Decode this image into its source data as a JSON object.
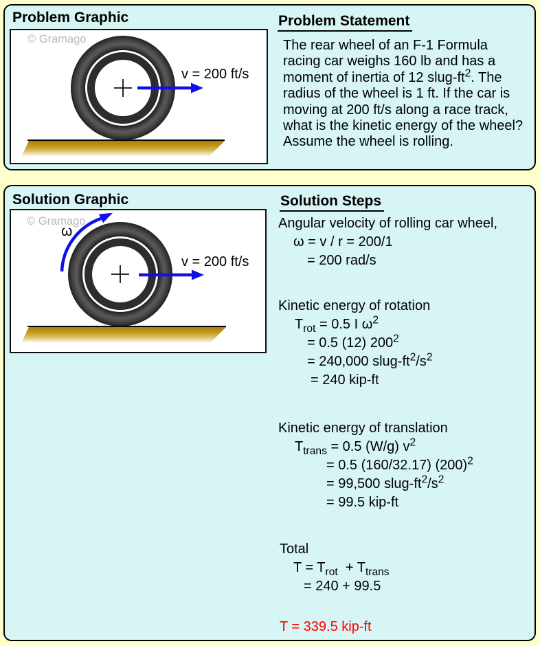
{
  "colors": {
    "page_bg": "#FFFFCC",
    "panel_bg": "#D7F5F5",
    "panel_border": "#000000",
    "arrow_blue": "#0F10E8",
    "result_red": "#FF0000",
    "ground_gold": "#B8860B",
    "watermark_gray": "#B9B9B9"
  },
  "problem": {
    "graphic_title": "Problem Graphic",
    "watermark": "© Gramago",
    "velocity_label": "v = 200 ft/s",
    "statement_title": "Problem Statement",
    "statement_lines": [
      "The rear wheel of an F-1 Formula",
      "racing car weighs 160 lb and has a",
      "moment of inertia of 12 slug-ft<sup>2</sup>. The",
      "radius of the wheel is 1 ft. If the car is",
      "moving at 200 ft/s along a race track,",
      "what is the kinetic energy of the wheel?",
      "Assume the wheel is rolling."
    ]
  },
  "solution": {
    "graphic_title": "Solution Graphic",
    "watermark": "© Gramago",
    "velocity_label": "v = 200 ft/s",
    "omega_label": "ω",
    "steps_title": "Solution Steps",
    "steps": [
      {
        "html": "Angular velocity of rolling car wheel,",
        "indent": 0
      },
      {
        "html": "ω = v / r = 200/1",
        "indent": 22
      },
      {
        "html": "= 200 rad/s",
        "indent": 42
      },
      {
        "html": "Kinetic energy of rotation",
        "indent": 0,
        "gap": 39
      },
      {
        "html": "T<sub>rot</sub> = 0.5 I ω<sup>2</sup>",
        "indent": 24
      },
      {
        "html": "= 0.5 (12) 200<sup>2</sup>",
        "indent": 42
      },
      {
        "html": "= 240,000 slug-ft<sup>2</sup>/s<sup>2</sup>",
        "indent": 42
      },
      {
        "html": "= 240 kip-ft",
        "indent": 47
      },
      {
        "html": "Kinetic energy of translation",
        "indent": 0,
        "gap": 43
      },
      {
        "html": "T<sub>trans</sub> = 0.5 (W/g) v<sup>2</sup>",
        "indent": 24
      },
      {
        "html": "= 0.5 (160/32.17) (200)<sup>2</sup>",
        "indent": 70
      },
      {
        "html": "= 99,500 slug-ft<sup>2</sup>/s<sup>2</sup>",
        "indent": 70
      },
      {
        "html": "= 99.5 kip-ft",
        "indent": 70
      },
      {
        "html": "Total",
        "indent": 2,
        "gap": 41
      },
      {
        "html": "T = T<sub>rot</sub>&nbsp; + T<sub>trans</sub>",
        "indent": 22
      },
      {
        "html": "= 240 + 99.5",
        "indent": 37
      },
      {
        "html": "T = 339.5 kip-ft",
        "indent": 2,
        "gap": 32,
        "color": "#FF0000"
      }
    ]
  }
}
